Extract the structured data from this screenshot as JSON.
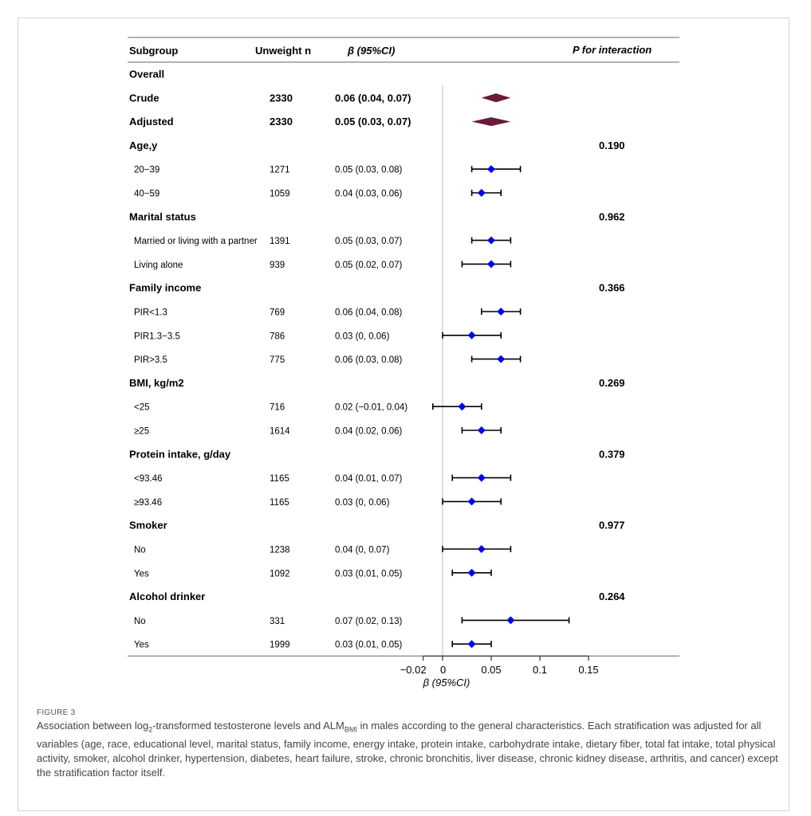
{
  "figure": {
    "label": "FIGURE 3",
    "caption_pre_log": "Association between log",
    "caption_sub_2": "2",
    "caption_mid": "-transformed testosterone levels and ALM",
    "caption_sub_bmi": "BMI",
    "caption_post": " in males according to the general characteristics. Each stratification was adjusted for all variables (age, race, educational level, marital status, family income, energy intake, protein intake, carbohydrate intake, dietary fiber, total fat intake, total physical activity, smoker, alcohol drinker, hypertension, diabetes, heart failure, stroke, chronic bronchitis, liver disease, chronic kidney disease, arthritis, and cancer) except the stratification factor itself."
  },
  "chart_data": {
    "type": "forest",
    "headers": {
      "subgroup": "Subgroup",
      "n": "Unweight n",
      "beta": "β (95%CI)",
      "p": "P for interaction"
    },
    "xlabel": "β (95%CI)",
    "xlim": [
      -0.02,
      0.15
    ],
    "xticks": [
      {
        "value": -0.02,
        "label": "−0.02"
      },
      {
        "value": 0,
        "label": "0"
      },
      {
        "value": 0.05,
        "label": "0.05"
      },
      {
        "value": 0.1,
        "label": "0.1"
      },
      {
        "value": 0.15,
        "label": "0.15"
      }
    ],
    "reference_line": 0,
    "colors": {
      "summary": "#6b1a3c",
      "point": "#0000ee",
      "ci": "#000000",
      "refline": "#bbbbbb"
    },
    "rows": [
      {
        "kind": "header",
        "label": "Overall"
      },
      {
        "kind": "summary",
        "label": "Crude",
        "n": "2330",
        "beta_text": "0.06 (0.04, 0.07)",
        "est": 0.055,
        "lo": 0.04,
        "hi": 0.07
      },
      {
        "kind": "summary",
        "label": "Adjusted",
        "n": "2330",
        "beta_text": "0.05 (0.03, 0.07)",
        "est": 0.05,
        "lo": 0.03,
        "hi": 0.07
      },
      {
        "kind": "header",
        "label": "Age,y",
        "p": "0.190"
      },
      {
        "kind": "item",
        "label": "20−39",
        "n": "1271",
        "beta_text": "0.05 (0.03, 0.08)",
        "est": 0.05,
        "lo": 0.03,
        "hi": 0.08
      },
      {
        "kind": "item",
        "label": "40−59",
        "n": "1059",
        "beta_text": "0.04 (0.03, 0.06)",
        "est": 0.04,
        "lo": 0.03,
        "hi": 0.06
      },
      {
        "kind": "header",
        "label": "Marital status",
        "p": "0.962"
      },
      {
        "kind": "item",
        "label": "Married or living with a partner",
        "n": "1391",
        "beta_text": "0.05 (0.03, 0.07)",
        "est": 0.05,
        "lo": 0.03,
        "hi": 0.07
      },
      {
        "kind": "item",
        "label": "Living alone",
        "n": "939",
        "beta_text": "0.05 (0.02, 0.07)",
        "est": 0.05,
        "lo": 0.02,
        "hi": 0.07
      },
      {
        "kind": "header",
        "label": "Family income",
        "p": "0.366"
      },
      {
        "kind": "item",
        "label": "PIR<1.3",
        "n": "769",
        "beta_text": "0.06 (0.04, 0.08)",
        "est": 0.06,
        "lo": 0.04,
        "hi": 0.08
      },
      {
        "kind": "item",
        "label": "PIR1.3−3.5",
        "n": "786",
        "beta_text": "0.03 (0, 0.06)",
        "est": 0.03,
        "lo": 0,
        "hi": 0.06
      },
      {
        "kind": "item",
        "label": "PIR>3.5",
        "n": "775",
        "beta_text": "0.06 (0.03, 0.08)",
        "est": 0.06,
        "lo": 0.03,
        "hi": 0.08
      },
      {
        "kind": "header",
        "label": "BMI, kg/m2",
        "p": "0.269"
      },
      {
        "kind": "item",
        "label": "<25",
        "n": "716",
        "beta_text": "0.02 (−0.01, 0.04)",
        "est": 0.02,
        "lo": -0.01,
        "hi": 0.04
      },
      {
        "kind": "item",
        "label": "≥25",
        "n": "1614",
        "beta_text": "0.04 (0.02, 0.06)",
        "est": 0.04,
        "lo": 0.02,
        "hi": 0.06
      },
      {
        "kind": "header",
        "label": "Protein intake, g/day",
        "p": "0.379"
      },
      {
        "kind": "item",
        "label": "<93.46",
        "n": "1165",
        "beta_text": "0.04 (0.01, 0.07)",
        "est": 0.04,
        "lo": 0.01,
        "hi": 0.07
      },
      {
        "kind": "item",
        "label": "≥93.46",
        "n": "1165",
        "beta_text": "0.03 (0, 0.06)",
        "est": 0.03,
        "lo": 0,
        "hi": 0.06
      },
      {
        "kind": "header",
        "label": "Smoker",
        "p": "0.977"
      },
      {
        "kind": "item",
        "label": "No",
        "n": "1238",
        "beta_text": "0.04 (0, 0.07)",
        "est": 0.04,
        "lo": 0,
        "hi": 0.07
      },
      {
        "kind": "item",
        "label": "Yes",
        "n": "1092",
        "beta_text": "0.03 (0.01, 0.05)",
        "est": 0.03,
        "lo": 0.01,
        "hi": 0.05
      },
      {
        "kind": "header",
        "label": "Alcohol drinker",
        "p": "0.264"
      },
      {
        "kind": "item",
        "label": "No",
        "n": "331",
        "beta_text": "0.07 (0.02, 0.13)",
        "est": 0.07,
        "lo": 0.02,
        "hi": 0.13
      },
      {
        "kind": "item",
        "label": "Yes",
        "n": "1999",
        "beta_text": "0.03 (0.01, 0.05)",
        "est": 0.03,
        "lo": 0.01,
        "hi": 0.05
      }
    ]
  }
}
